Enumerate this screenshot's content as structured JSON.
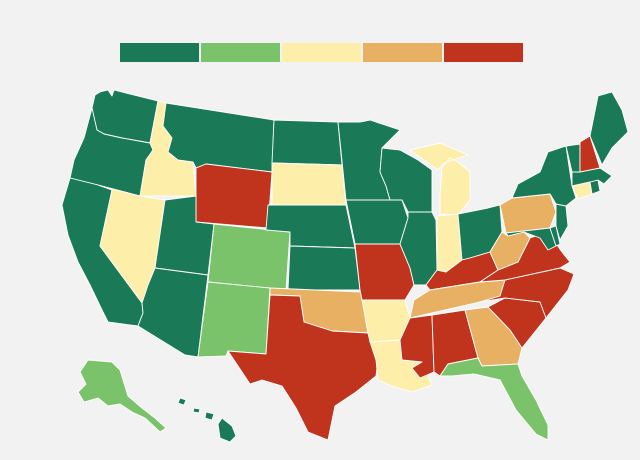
{
  "legend": {
    "colors": [
      "#1a7a57",
      "#7bc36a",
      "#fdeeaa",
      "#e8b062",
      "#c0341e"
    ]
  },
  "states": {
    "WA": 0,
    "OR": 0,
    "CA": 0,
    "ID": 2,
    "NV": 2,
    "MT": 0,
    "WY": 4,
    "UT": 0,
    "AZ": 0,
    "CO": 1,
    "NM": 1,
    "ND": 0,
    "SD": 2,
    "NE": 0,
    "KS": 0,
    "OK": 3,
    "TX": 4,
    "MN": 0,
    "IA": 0,
    "MO": 4,
    "AR": 2,
    "LA": 2,
    "WI": 0,
    "IL": 0,
    "MI": 2,
    "IN": 2,
    "OH": 0,
    "KY": 4,
    "TN": 3,
    "MS": 4,
    "AL": 4,
    "GA": 3,
    "FL": 1,
    "SC": 4,
    "NC": 4,
    "VA": 4,
    "WV": 3,
    "PA": 3,
    "NY": 0,
    "VT": 0,
    "NH": 4,
    "ME": 0,
    "MA": 0,
    "CT": 2,
    "RI": 0,
    "NJ": 0,
    "DE": 0,
    "MD": 0,
    "AK": 1,
    "HI": 0
  }
}
